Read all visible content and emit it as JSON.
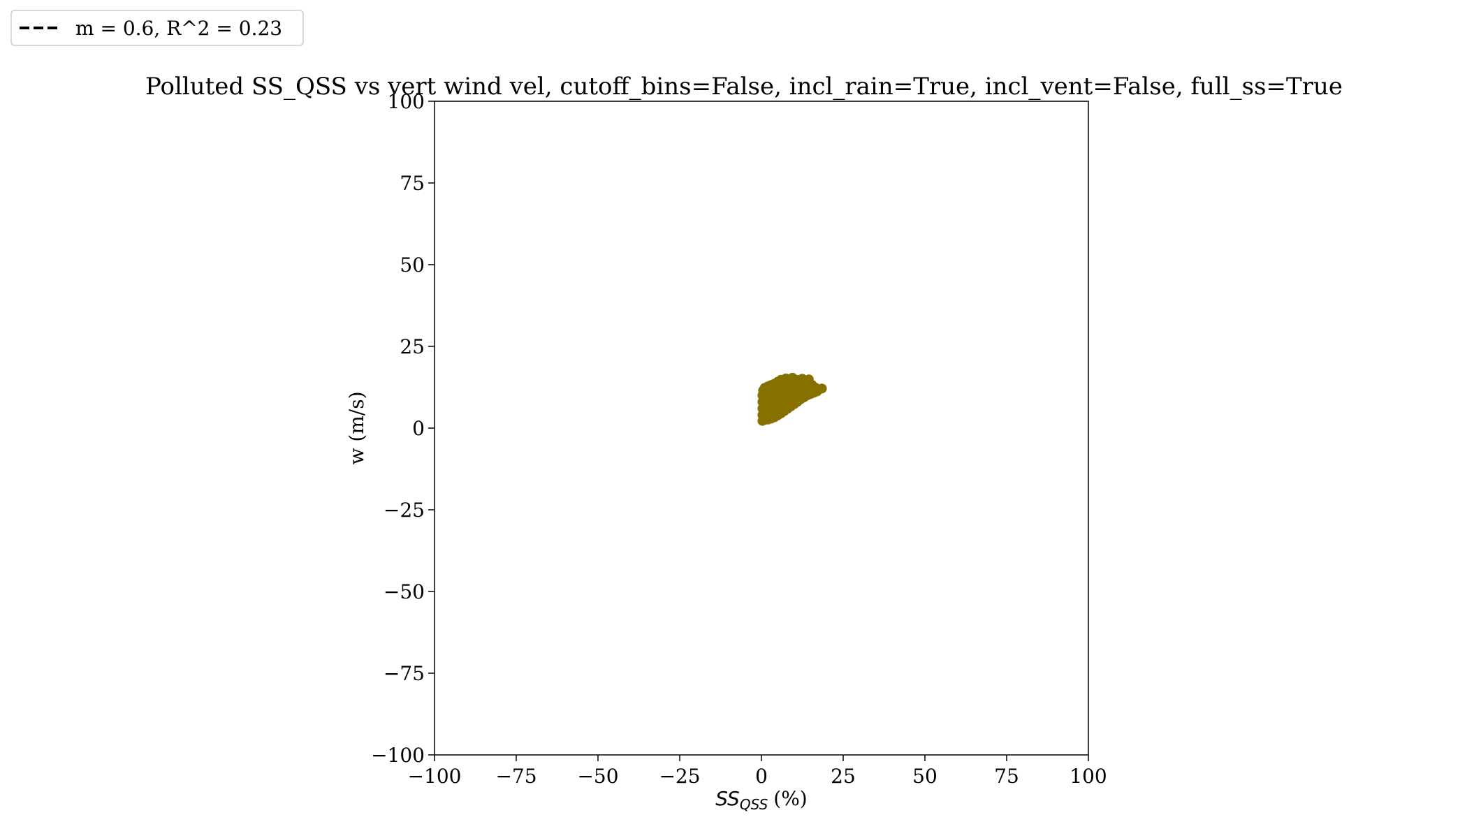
{
  "chart_data": {
    "type": "scatter",
    "title": "Polluted SS_QSS vs vert wind vel, cutoff_bins=False, incl_rain=True, incl_vent=False, full_ss=True",
    "xlabel": "SS",
    "xlabel_subscript": "QSS",
    "xlabel_unit": "(%)",
    "ylabel": "w (m/s)",
    "xlim": [
      -100,
      100
    ],
    "ylim": [
      -100,
      100
    ],
    "xticks": [
      "−100",
      "−75",
      "−50",
      "−25",
      "0",
      "25",
      "50",
      "75",
      "100"
    ],
    "xtick_values": [
      -100,
      -75,
      -50,
      -25,
      0,
      25,
      50,
      75,
      100
    ],
    "yticks": [
      "100",
      "75",
      "50",
      "25",
      "0",
      "−25",
      "−50",
      "−75",
      "−100"
    ],
    "ytick_values": [
      100,
      75,
      50,
      25,
      0,
      -25,
      -50,
      -75,
      -100
    ],
    "grid": false,
    "legend_position": "top-left, outside plot",
    "legend": [
      {
        "label": "m = 0.6, R^2 = 0.23",
        "style": "dashed",
        "color": "#000000"
      }
    ],
    "series": [
      {
        "marker_color": "#857000",
        "points": [
          [
            0.3,
            2.2
          ],
          [
            1,
            2.5
          ],
          [
            2,
            2.6
          ],
          [
            3,
            2.9
          ],
          [
            4,
            3.3
          ],
          [
            5,
            3.9
          ],
          [
            6,
            4.5
          ],
          [
            7,
            5.2
          ],
          [
            8,
            5.9
          ],
          [
            9,
            6.6
          ],
          [
            10,
            7.3
          ],
          [
            11,
            8
          ],
          [
            12,
            8.8
          ],
          [
            13,
            9.4
          ],
          [
            14,
            10
          ],
          [
            15,
            10.4
          ],
          [
            16,
            10.8
          ],
          [
            17,
            11.2
          ],
          [
            18.5,
            12.1
          ],
          [
            0.3,
            4
          ],
          [
            0.3,
            6
          ],
          [
            0.3,
            8
          ],
          [
            0.3,
            10
          ],
          [
            0.5,
            11.5
          ],
          [
            1,
            12.3
          ],
          [
            2,
            12.8
          ],
          [
            3,
            13.2
          ],
          [
            4,
            13.6
          ],
          [
            5,
            14.2
          ],
          [
            6,
            14.8
          ],
          [
            7.5,
            15.2
          ],
          [
            9.5,
            15.4
          ],
          [
            11,
            14.8
          ],
          [
            12.5,
            15.1
          ],
          [
            14.5,
            14.9
          ],
          [
            15.5,
            13.2
          ],
          [
            16.5,
            12.4
          ],
          [
            1,
            4
          ],
          [
            1,
            6
          ],
          [
            1,
            8
          ],
          [
            1,
            10
          ],
          [
            2,
            4
          ],
          [
            2,
            6
          ],
          [
            2,
            8
          ],
          [
            2,
            10
          ],
          [
            2,
            12
          ],
          [
            3,
            4
          ],
          [
            3,
            6
          ],
          [
            3,
            8
          ],
          [
            3,
            10
          ],
          [
            3,
            12
          ],
          [
            4,
            4.5
          ],
          [
            4,
            6
          ],
          [
            4,
            8
          ],
          [
            4,
            10
          ],
          [
            4,
            12
          ],
          [
            4,
            13
          ],
          [
            5,
            5
          ],
          [
            5,
            7
          ],
          [
            5,
            9
          ],
          [
            5,
            11
          ],
          [
            5,
            13
          ],
          [
            6,
            5.5
          ],
          [
            6,
            7
          ],
          [
            6,
            9
          ],
          [
            6,
            11
          ],
          [
            6,
            13
          ],
          [
            6,
            14
          ],
          [
            7,
            6
          ],
          [
            7,
            8
          ],
          [
            7,
            10
          ],
          [
            7,
            12
          ],
          [
            7,
            14
          ],
          [
            8,
            7
          ],
          [
            8,
            9
          ],
          [
            8,
            11
          ],
          [
            8,
            13
          ],
          [
            9,
            8
          ],
          [
            9,
            10
          ],
          [
            9,
            12
          ],
          [
            9,
            14
          ],
          [
            10,
            8.5
          ],
          [
            10,
            10
          ],
          [
            10,
            12
          ],
          [
            10,
            13.5
          ],
          [
            11,
            9
          ],
          [
            11,
            11
          ],
          [
            11,
            13
          ],
          [
            12,
            10
          ],
          [
            12,
            12
          ],
          [
            12,
            13.5
          ],
          [
            13,
            10.5
          ],
          [
            13,
            12
          ],
          [
            13,
            13.5
          ],
          [
            14,
            11
          ],
          [
            14,
            12.5
          ],
          [
            15,
            11.5
          ],
          [
            15,
            12.5
          ],
          [
            16,
            11.5
          ],
          [
            17,
            11.8
          ]
        ]
      }
    ]
  }
}
